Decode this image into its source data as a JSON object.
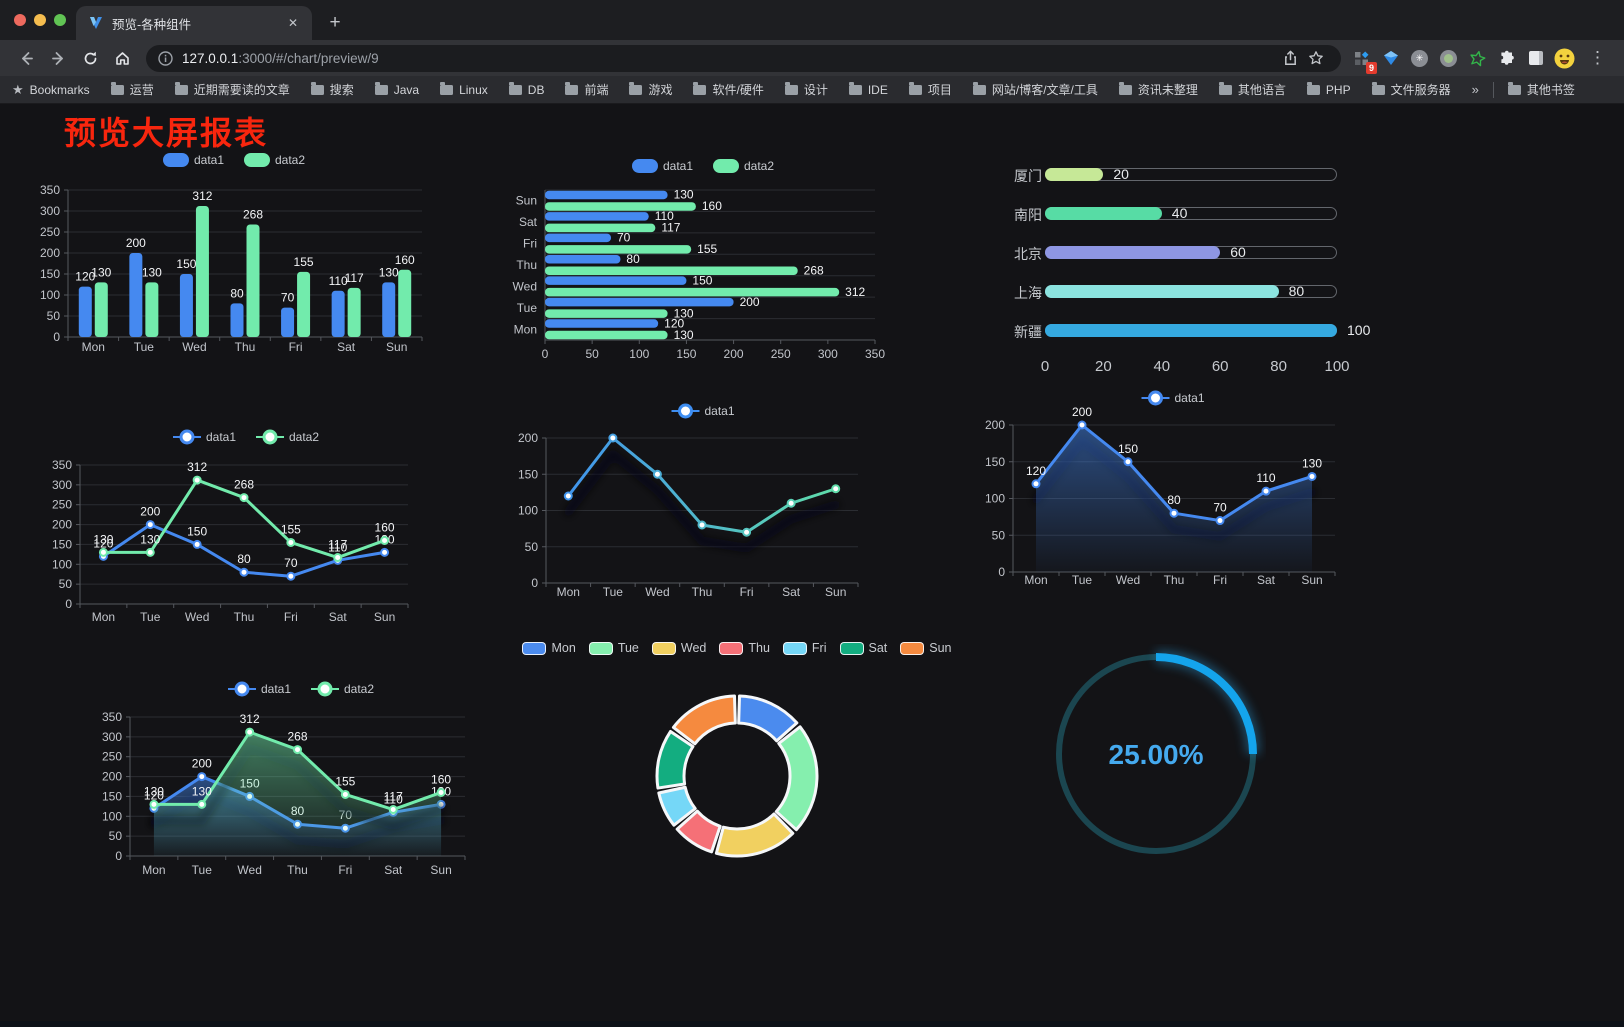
{
  "browser": {
    "tab_title": "预览-各种组件",
    "close_tab": "✕",
    "new_tab_button": "+",
    "url_host": "127.0.0.1",
    "url_path": ":3000/#/chart/preview/9",
    "extension_badge": "9",
    "bookmarks_label": "Bookmarks",
    "bookmarks": [
      "运营",
      "近期需要读的文章",
      "搜索",
      "Java",
      "Linux",
      "DB",
      "前端",
      "游戏",
      "软件/硬件",
      "设计",
      "IDE",
      "项目",
      "网站/博客/文章/工具",
      "资讯未整理",
      "其他语言",
      "PHP",
      "文件服务器"
    ],
    "bookmarks_overflow": "»",
    "other_bookmarks": "其他书签"
  },
  "page": {
    "title": "预览大屏报表",
    "title_color": "#f8260e",
    "background": "#131316"
  },
  "colors": {
    "data1_blue": "#4589f0",
    "data2_green": "#72ebac",
    "axis_text": "#c2c5cb",
    "value_label": "#f4f5f7",
    "gridline": "#2b2d32",
    "axis_line": "#55585e"
  },
  "chart_data": [
    {
      "id": "grouped-bar",
      "type": "bar",
      "legend_position": "top",
      "categories": [
        "Mon",
        "Tue",
        "Wed",
        "Thu",
        "Fri",
        "Sat",
        "Sun"
      ],
      "series": [
        {
          "name": "data1",
          "color": "#4589f0",
          "values": [
            120,
            200,
            150,
            80,
            70,
            110,
            130
          ]
        },
        {
          "name": "data2",
          "color": "#72ebac",
          "values": [
            130,
            130,
            312,
            268,
            155,
            117,
            160
          ]
        }
      ],
      "ylim": [
        0,
        350
      ],
      "ytick": 50,
      "grid": true
    },
    {
      "id": "horizontal-bar",
      "type": "bar",
      "orientation": "horizontal",
      "legend_position": "top",
      "categories": [
        "Mon",
        "Tue",
        "Wed",
        "Thu",
        "Fri",
        "Sat",
        "Sun"
      ],
      "series": [
        {
          "name": "data1",
          "color": "#4589f0",
          "values": [
            120,
            200,
            150,
            80,
            70,
            110,
            130
          ]
        },
        {
          "name": "data2",
          "color": "#72ebac",
          "values": [
            130,
            130,
            312,
            268,
            155,
            117,
            160
          ]
        }
      ],
      "xlim": [
        0,
        350
      ],
      "xtick": 50
    },
    {
      "id": "progress-bars",
      "type": "bar",
      "orientation": "horizontal",
      "style": "progress",
      "items": [
        {
          "label": "厦门",
          "value": 20,
          "color": "#c6e897"
        },
        {
          "label": "南阳",
          "value": 40,
          "color": "#57dca5"
        },
        {
          "label": "北京",
          "value": 60,
          "color": "#8e96e3"
        },
        {
          "label": "上海",
          "value": 80,
          "color": "#8be3df"
        },
        {
          "label": "新疆",
          "value": 100,
          "color": "#35a9e0"
        }
      ],
      "xlim": [
        0,
        100
      ],
      "xticks": [
        0,
        20,
        40,
        60,
        80,
        100
      ]
    },
    {
      "id": "two-series-line",
      "type": "line",
      "legend_position": "top",
      "show_labels": true,
      "categories": [
        "Mon",
        "Tue",
        "Wed",
        "Thu",
        "Fri",
        "Sat",
        "Sun"
      ],
      "series": [
        {
          "name": "data1",
          "color": "#4589f0",
          "values": [
            120,
            200,
            150,
            80,
            70,
            110,
            130
          ]
        },
        {
          "name": "data2",
          "color": "#72ebac",
          "values": [
            130,
            130,
            312,
            268,
            155,
            117,
            160
          ]
        }
      ],
      "ylim": [
        0,
        350
      ],
      "ytick": 50
    },
    {
      "id": "gradient-line",
      "type": "line",
      "legend_position": "top",
      "show_labels": false,
      "categories": [
        "Mon",
        "Tue",
        "Wed",
        "Thu",
        "Fri",
        "Sat",
        "Sun"
      ],
      "series": [
        {
          "name": "data1",
          "gradient": [
            "#3e8ef2",
            "#62e3a4"
          ],
          "values": [
            120,
            200,
            150,
            80,
            70,
            110,
            130
          ]
        }
      ],
      "ylim": [
        0,
        200
      ],
      "ytick": 50
    },
    {
      "id": "single-area",
      "type": "area",
      "legend_position": "top",
      "show_labels": true,
      "categories": [
        "Mon",
        "Tue",
        "Wed",
        "Thu",
        "Fri",
        "Sat",
        "Sun"
      ],
      "series": [
        {
          "name": "data1",
          "color": "#4589f0",
          "values": [
            120,
            200,
            150,
            80,
            70,
            110,
            130
          ]
        }
      ],
      "ylim": [
        0,
        200
      ],
      "ytick": 50
    },
    {
      "id": "two-series-area",
      "type": "area",
      "legend_position": "top",
      "show_labels": true,
      "categories": [
        "Mon",
        "Tue",
        "Wed",
        "Thu",
        "Fri",
        "Sat",
        "Sun"
      ],
      "series": [
        {
          "name": "data1",
          "color": "#4589f0",
          "values": [
            120,
            200,
            150,
            80,
            70,
            110,
            130
          ]
        },
        {
          "name": "data2",
          "color": "#72ebac",
          "values": [
            130,
            130,
            312,
            268,
            155,
            117,
            160
          ]
        }
      ],
      "ylim": [
        0,
        350
      ],
      "ytick": 50
    },
    {
      "id": "donut",
      "type": "pie",
      "inner_radius_ratio": 0.67,
      "legend_position": "top",
      "categories": [
        "Mon",
        "Tue",
        "Wed",
        "Thu",
        "Fri",
        "Sat",
        "Sun"
      ],
      "values": [
        120,
        200,
        150,
        80,
        70,
        110,
        130
      ],
      "colors": [
        "#4b8bee",
        "#85efae",
        "#f1d060",
        "#f57077",
        "#75d7f7",
        "#13ad80",
        "#f58a3f"
      ]
    },
    {
      "id": "gauge",
      "type": "gauge",
      "value": 25,
      "display": "25.00%",
      "color": "#14a4ec",
      "track_color": "#1b4650",
      "text_color": "#45aaef"
    }
  ]
}
